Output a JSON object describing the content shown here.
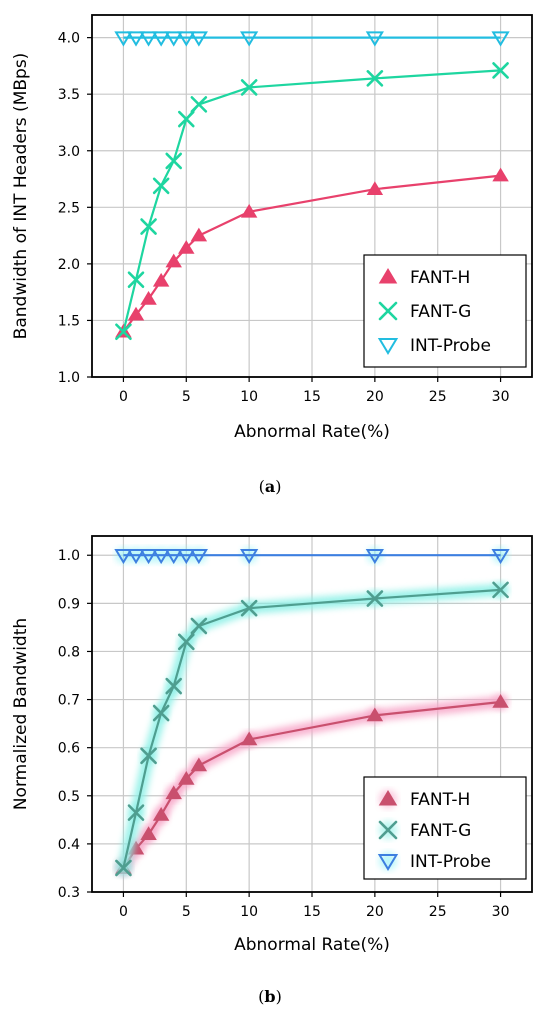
{
  "chart_data": [
    {
      "type": "line",
      "caption": "(a)",
      "caption_parts": [
        "(",
        "a",
        ")"
      ],
      "xlabel": "Abnormal Rate(%)",
      "ylabel": "Bandwidth of INT Headers (MBps)",
      "xlim": [
        -2.5,
        32.5
      ],
      "ylim": [
        1.0,
        4.2
      ],
      "xticks": [
        0,
        5,
        10,
        15,
        20,
        25,
        30
      ],
      "xtick_labels": [
        "0",
        "5",
        "10",
        "15",
        "20",
        "25",
        "30"
      ],
      "yticks": [
        1.0,
        1.5,
        2.0,
        2.5,
        3.0,
        3.5,
        4.0
      ],
      "ytick_labels": [
        "1.0",
        "1.5",
        "2.0",
        "2.5",
        "3.0",
        "3.5",
        "4.0"
      ],
      "grid": true,
      "glow": false,
      "legend_position": "bottom-right",
      "x": [
        0,
        1,
        2,
        3,
        4,
        5,
        6,
        10,
        20,
        30
      ],
      "series": [
        {
          "name": "FANT-H",
          "color": "#e8416c",
          "marker": "triangle-up",
          "values": [
            1.4,
            1.55,
            1.69,
            1.85,
            2.02,
            2.14,
            2.25,
            2.46,
            2.66,
            2.78
          ]
        },
        {
          "name": "FANT-G",
          "color": "#1ed6a0",
          "marker": "x",
          "values": [
            1.4,
            1.86,
            2.33,
            2.69,
            2.91,
            3.28,
            3.41,
            3.56,
            3.64,
            3.71
          ]
        },
        {
          "name": "INT-Probe",
          "color": "#22bde0",
          "marker": "triangle-down",
          "values": [
            4.0,
            4.0,
            4.0,
            4.0,
            4.0,
            4.0,
            4.0,
            4.0,
            4.0,
            4.0
          ]
        }
      ]
    },
    {
      "type": "line",
      "caption": "(b)",
      "caption_parts": [
        "(",
        "b",
        ")"
      ],
      "xlabel": "Abnormal Rate(%)",
      "ylabel": "Normalized Bandwidth",
      "xlim": [
        -2.5,
        32.5
      ],
      "ylim": [
        0.3,
        1.04
      ],
      "xticks": [
        0,
        5,
        10,
        15,
        20,
        25,
        30
      ],
      "xtick_labels": [
        "0",
        "5",
        "10",
        "15",
        "20",
        "25",
        "30"
      ],
      "yticks": [
        0.3,
        0.4,
        0.5,
        0.6,
        0.7,
        0.8,
        0.9,
        1.0
      ],
      "ytick_labels": [
        "0.3",
        "0.4",
        "0.5",
        "0.6",
        "0.7",
        "0.8",
        "0.9",
        "1.0"
      ],
      "grid": true,
      "glow": true,
      "legend_position": "bottom-right",
      "x": [
        0,
        1,
        2,
        3,
        4,
        5,
        6,
        10,
        20,
        30
      ],
      "series": [
        {
          "name": "FANT-H",
          "color": "#c9506e",
          "glow_color": "#f7a6c8",
          "marker": "triangle-up",
          "values": [
            0.35,
            0.39,
            0.42,
            0.46,
            0.505,
            0.535,
            0.563,
            0.617,
            0.667,
            0.695
          ]
        },
        {
          "name": "FANT-G",
          "color": "#4f9e90",
          "glow_color": "#8af0e6",
          "marker": "x",
          "values": [
            0.35,
            0.465,
            0.583,
            0.672,
            0.728,
            0.82,
            0.853,
            0.89,
            0.91,
            0.928
          ]
        },
        {
          "name": "INT-Probe",
          "color": "#3d7fe0",
          "glow_color": "#8ff2f5",
          "marker": "triangle-down",
          "values": [
            1.0,
            1.0,
            1.0,
            1.0,
            1.0,
            1.0,
            1.0,
            1.0,
            1.0,
            1.0
          ]
        }
      ]
    }
  ]
}
